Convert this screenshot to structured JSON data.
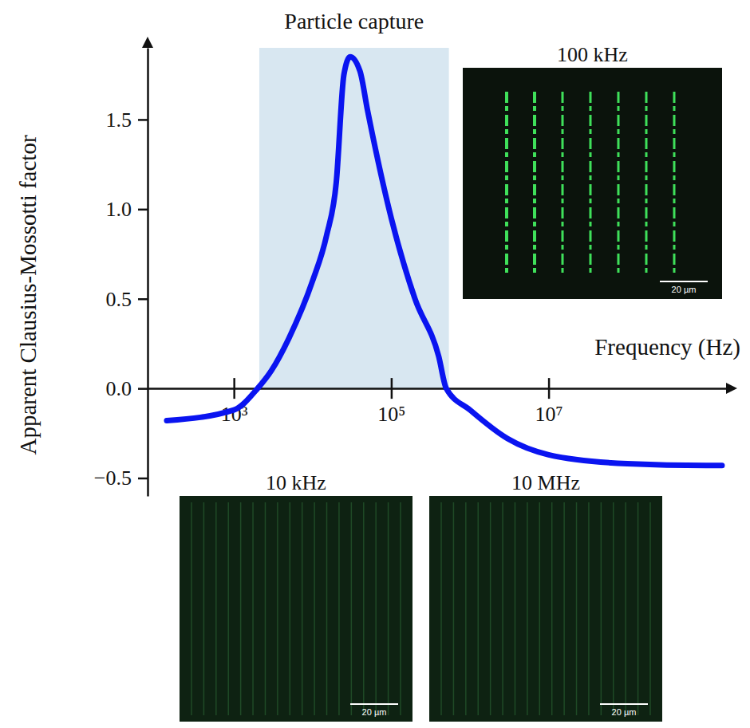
{
  "chart_data": {
    "type": "line",
    "xlabel": "Frequency (Hz)",
    "ylabel": "Apparent Clausius-Mossotti factor",
    "log": "x",
    "color": "#0a14f0",
    "xlim": [
      80,
      1800000000
    ],
    "ylim": [
      -0.6,
      1.9
    ],
    "xticks": [
      {
        "value": 1000,
        "label": "10³"
      },
      {
        "value": 100000,
        "label": "10⁵"
      },
      {
        "value": 10000000,
        "label": "10⁷"
      }
    ],
    "yticks": [
      {
        "value": -0.5,
        "label": "−0.5"
      },
      {
        "value": 0,
        "label": "0.0"
      },
      0.5,
      {
        "value": 1,
        "label": "1.0"
      },
      1.5
    ],
    "x": [
      140,
      1000,
      2000,
      3000,
      5000,
      10000,
      15000,
      20000,
      25000,
      30000,
      40000,
      50000,
      100000,
      200000,
      400000,
      500000,
      1000000,
      3000000,
      10000000,
      100000000,
      1000000000,
      1600000000
    ],
    "values": [
      -0.18,
      -0.12,
      0.0,
      0.1,
      0.28,
      0.6,
      0.85,
      1.15,
      1.75,
      1.85,
      1.77,
      1.55,
      0.95,
      0.5,
      0.18,
      0.0,
      -0.12,
      -0.28,
      -0.37,
      -0.42,
      -0.43,
      -0.43
    ],
    "annotations": [
      {
        "text": "Particle capture",
        "x": [
          2100,
          540000
        ]
      }
    ],
    "insets": [
      {
        "label": "100 kHz",
        "scale_bar": "20 µm"
      },
      {
        "label": "10 kHz",
        "scale_bar": "20 µm"
      },
      {
        "label": "10 MHz",
        "scale_bar": "20 µm"
      }
    ]
  }
}
